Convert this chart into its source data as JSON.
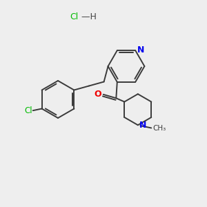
{
  "background_color": "#eeeeee",
  "bond_color": "#3a3a3a",
  "N_color": "#0000ee",
  "O_color": "#ee0000",
  "Cl_color": "#00bb00",
  "figsize": [
    3.0,
    3.0
  ],
  "dpi": 100,
  "xlim": [
    0,
    10
  ],
  "ylim": [
    0,
    10
  ]
}
